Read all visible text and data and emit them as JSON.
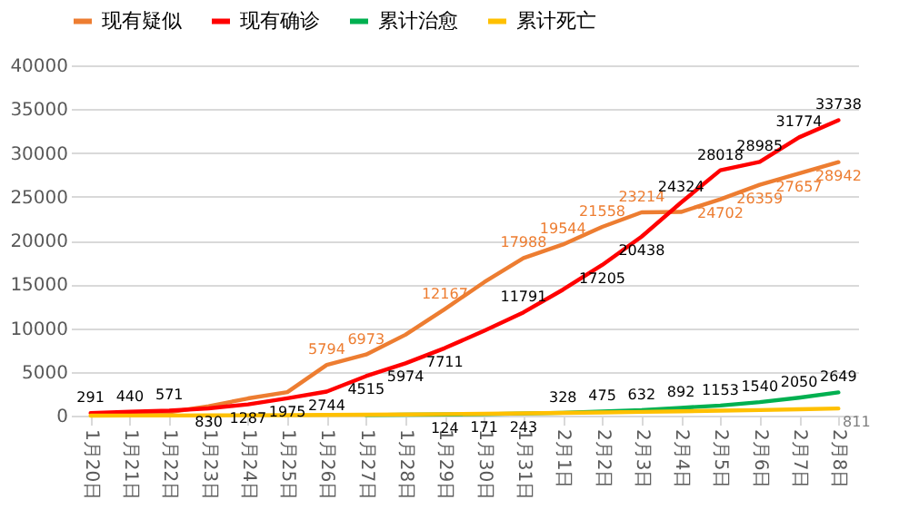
{
  "chart_data": {
    "type": "line",
    "categories": [
      "1月20日",
      "1月21日",
      "1月22日",
      "1月23日",
      "1月24日",
      "1月25日",
      "1月26日",
      "1月27日",
      "1月28日",
      "1月29日",
      "1月30日",
      "1月31日",
      "2月1日",
      "2月2日",
      "2月3日",
      "2月4日",
      "2月5日",
      "2月6日",
      "2月7日",
      "2月8日"
    ],
    "series": [
      {
        "name": "现有疑似",
        "color": "#ed7d31",
        "values": [
          null,
          54,
          393,
          1072,
          1965,
          2684,
          5794,
          6973,
          9239,
          12167,
          15238,
          17988,
          19544,
          21558,
          23214,
          23260,
          24702,
          26359,
          27657,
          28942
        ],
        "value_labels": [
          null,
          null,
          null,
          null,
          null,
          null,
          "5794",
          "6973",
          null,
          "12167",
          null,
          "17988",
          "19544",
          "21558",
          "23214",
          null,
          "24702",
          "26359",
          "27657",
          "28942"
        ]
      },
      {
        "name": "现有确诊",
        "color": "#ff0000",
        "values": [
          291,
          440,
          571,
          830,
          1287,
          1975,
          2744,
          4515,
          5974,
          7711,
          9692,
          11791,
          14380,
          17205,
          20438,
          24324,
          28018,
          28985,
          31774,
          33738
        ],
        "value_labels": [
          "291",
          "440",
          "571",
          "830",
          "1287",
          "1975",
          "2744",
          "4515",
          "5974",
          "7711",
          null,
          "11791",
          null,
          "17205",
          "20438",
          "24324",
          "28018",
          "28985",
          "31774",
          "33738"
        ]
      },
      {
        "name": "累计治愈",
        "color": "#00b050",
        "values": [
          null,
          null,
          null,
          null,
          null,
          null,
          null,
          60,
          103,
          124,
          171,
          243,
          328,
          475,
          632,
          892,
          1153,
          1540,
          2050,
          2649
        ],
        "value_labels": [
          null,
          null,
          null,
          null,
          null,
          null,
          null,
          null,
          null,
          "124",
          "171",
          "243",
          "328",
          "475",
          "632",
          "892",
          "1153",
          "1540",
          "2050",
          "2649"
        ]
      },
      {
        "name": "累计死亡",
        "color": "#ffc000",
        "values": [
          6,
          9,
          17,
          25,
          41,
          56,
          80,
          106,
          132,
          170,
          213,
          259,
          304,
          361,
          425,
          490,
          563,
          636,
          722,
          811
        ],
        "value_labels": [
          null,
          null,
          null,
          null,
          null,
          null,
          null,
          null,
          null,
          null,
          null,
          null,
          null,
          null,
          null,
          null,
          null,
          null,
          null,
          "811"
        ]
      }
    ],
    "ylim": [
      0,
      40000
    ],
    "yticks": [
      0,
      5000,
      10000,
      15000,
      20000,
      25000,
      30000,
      35000,
      40000
    ],
    "grid": "y",
    "legend": "top",
    "line_style": "solid",
    "marker": "none"
  }
}
